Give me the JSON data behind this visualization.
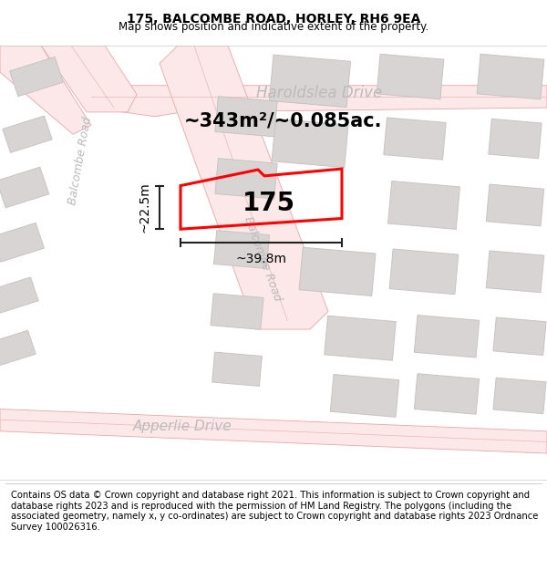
{
  "title": "175, BALCOMBE ROAD, HORLEY, RH6 9EA",
  "subtitle": "Map shows position and indicative extent of the property.",
  "footer": "Contains OS data © Crown copyright and database right 2021. This information is subject to Crown copyright and database rights 2023 and is reproduced with the permission of HM Land Registry. The polygons (including the associated geometry, namely x, y co-ordinates) are subject to Crown copyright and database rights 2023 Ordnance Survey 100026316.",
  "plot_label": "175",
  "area_text": "~343m²/~0.085ac.",
  "width_text": "~39.8m",
  "height_text": "~22.5m",
  "bg_color": "#ffffff",
  "road_fill": "#fce8e8",
  "road_edge": "#e8a8a8",
  "road_center": "#e8b8b8",
  "building_fill": "#d8d4d4",
  "building_edge": "#c8c4c4",
  "plot_color": "#ff0000",
  "road_text_color": "#bbbbbb",
  "dim_color": "#222222",
  "title_fontsize": 10,
  "subtitle_fontsize": 8.5,
  "footer_fontsize": 7.2,
  "label_fontsize": 20,
  "area_fontsize": 15,
  "dim_fontsize": 10,
  "road_label_fontsize": 11
}
